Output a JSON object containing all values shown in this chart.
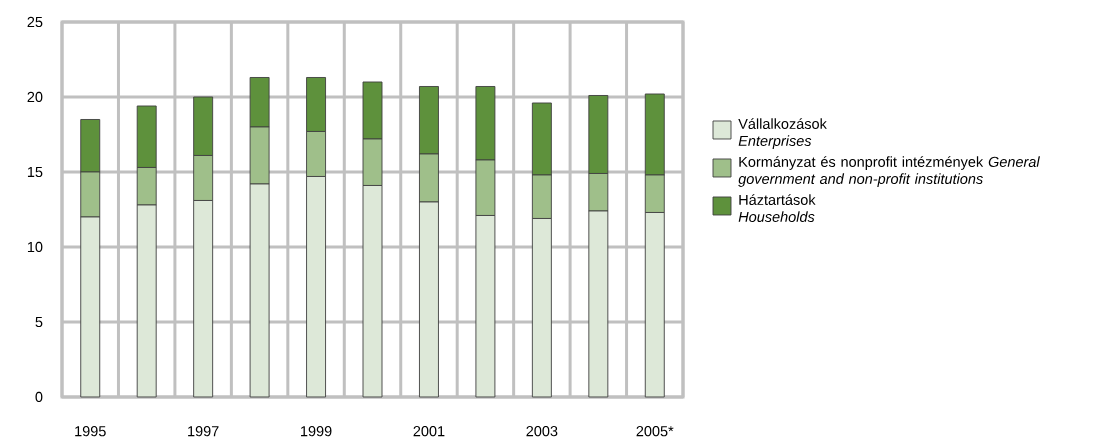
{
  "chart_data": {
    "type": "bar",
    "stacked": true,
    "categories": [
      "1995",
      null,
      "1997",
      null,
      "1999",
      null,
      "2001",
      null,
      "2003",
      null,
      "2005*"
    ],
    "series": [
      {
        "name": "Vállalkozások *Enterprises*",
        "color": "#dde8d8",
        "values": [
          12.0,
          12.8,
          13.1,
          14.2,
          14.7,
          14.1,
          13.0,
          12.1,
          11.9,
          12.4,
          12.3
        ]
      },
      {
        "name": "Kormányzat és nonprofit intézmények *General government and non-profit institutions*",
        "color": "#9fbf8a",
        "values": [
          3.0,
          2.5,
          3.0,
          3.8,
          3.0,
          3.1,
          3.2,
          3.7,
          2.9,
          2.5,
          2.5
        ]
      },
      {
        "name": "Háztartások *Households*",
        "color": "#5e913c",
        "values": [
          3.5,
          4.1,
          3.9,
          3.3,
          3.6,
          3.8,
          4.5,
          4.9,
          4.8,
          5.2,
          5.4
        ]
      }
    ],
    "ylim": [
      0,
      25
    ],
    "yticks": [
      0,
      5,
      10,
      15,
      20,
      25
    ],
    "grid": true,
    "legend": "right"
  }
}
